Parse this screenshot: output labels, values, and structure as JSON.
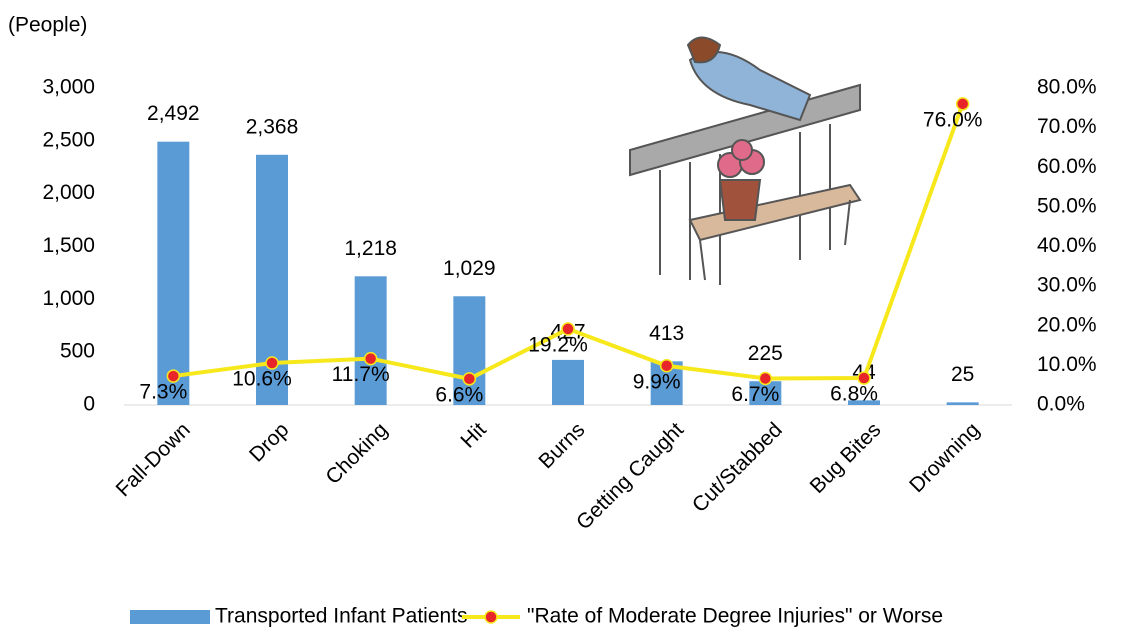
{
  "chart_data": {
    "type": "bar",
    "y_axis_label": "(People)",
    "categories": [
      "Fall-Down",
      "Drop",
      "Choking",
      "Hit",
      "Burns",
      "Getting Caught",
      "Cut/Stabbed",
      "Bug Bites",
      "Drowning"
    ],
    "series": [
      {
        "name": "Transported Infant Patients",
        "type": "bar",
        "color": "#5b9bd5",
        "values": [
          2492,
          2368,
          1218,
          1029,
          427,
          413,
          225,
          44,
          25
        ],
        "value_labels": [
          "2,492",
          "2,368",
          "1,218",
          "1,029",
          "427",
          "413",
          "225",
          "44",
          "25"
        ]
      },
      {
        "name": "\"Rate of Moderate Degree Injuries\" or Worse",
        "type": "line",
        "axis": "y2",
        "color": "#f7e81c",
        "marker_color": "#e8262a",
        "values": [
          7.3,
          10.6,
          11.7,
          6.6,
          19.2,
          9.9,
          6.7,
          6.8,
          76.0
        ],
        "value_labels": [
          "7.3%",
          "10.6%",
          "11.7%",
          "6.6%",
          "19.2%",
          "9.9%",
          "6.7%",
          "6.8%",
          "76.0%"
        ]
      }
    ],
    "ylim": [
      0,
      3000
    ],
    "yticks": [
      0,
      500,
      {
        "value": 1000,
        "label": "1,000"
      },
      {
        "value": 1500,
        "label": "1,500"
      },
      {
        "value": 2000,
        "label": "2,000"
      },
      {
        "value": 2500,
        "label": "2,500"
      },
      {
        "value": 3000,
        "label": "3,000"
      }
    ],
    "y2lim": [
      0,
      80
    ],
    "y2ticks": [
      {
        "value": 0,
        "label": "0.0%"
      },
      {
        "value": 10,
        "label": "10.0%"
      },
      {
        "value": 20,
        "label": "20.0%"
      },
      {
        "value": 30,
        "label": "30.0%"
      },
      {
        "value": 40,
        "label": "40.0%"
      },
      {
        "value": 50,
        "label": "50.0%"
      },
      {
        "value": 60,
        "label": "60.0%"
      },
      {
        "value": 70,
        "label": "70.0%"
      },
      {
        "value": 80,
        "label": "80.0%"
      }
    ],
    "grid": false,
    "legend": "bottom"
  }
}
